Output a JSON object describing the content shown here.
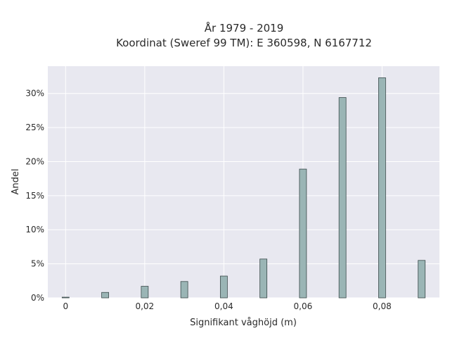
{
  "chart_data": {
    "type": "bar",
    "title": "År 1979 - 2019",
    "subtitle": "Koordinat (Sweref 99 TM): E 360598, N 6167712",
    "xlabel": "Signifikant våghöjd (m)",
    "ylabel": "Andel",
    "x": [
      0,
      0.01,
      0.02,
      0.03,
      0.04,
      0.05,
      0.06,
      0.07,
      0.08,
      0.09
    ],
    "values": [
      0.1,
      0.8,
      1.7,
      2.4,
      3.2,
      5.7,
      18.9,
      29.4,
      32.3,
      5.5
    ],
    "xlim": [
      -0.0045,
      0.0945
    ],
    "ylim": [
      0,
      34
    ],
    "xticks": [
      0,
      0.02,
      0.04,
      0.06,
      0.08
    ],
    "xtick_labels": [
      "0",
      "0,02",
      "0,04",
      "0,06",
      "0,08"
    ],
    "yticks": [
      0,
      5,
      10,
      15,
      20,
      25,
      30
    ],
    "ytick_labels": [
      "0%",
      "5%",
      "10%",
      "15%",
      "20%",
      "25%",
      "30%"
    ],
    "grid": true,
    "colors": {
      "bar_fill": "#9ab5b5",
      "bar_stroke": "#3a4a4a",
      "plot_bg": "#e8e8f0",
      "grid": "#ffffff"
    }
  }
}
